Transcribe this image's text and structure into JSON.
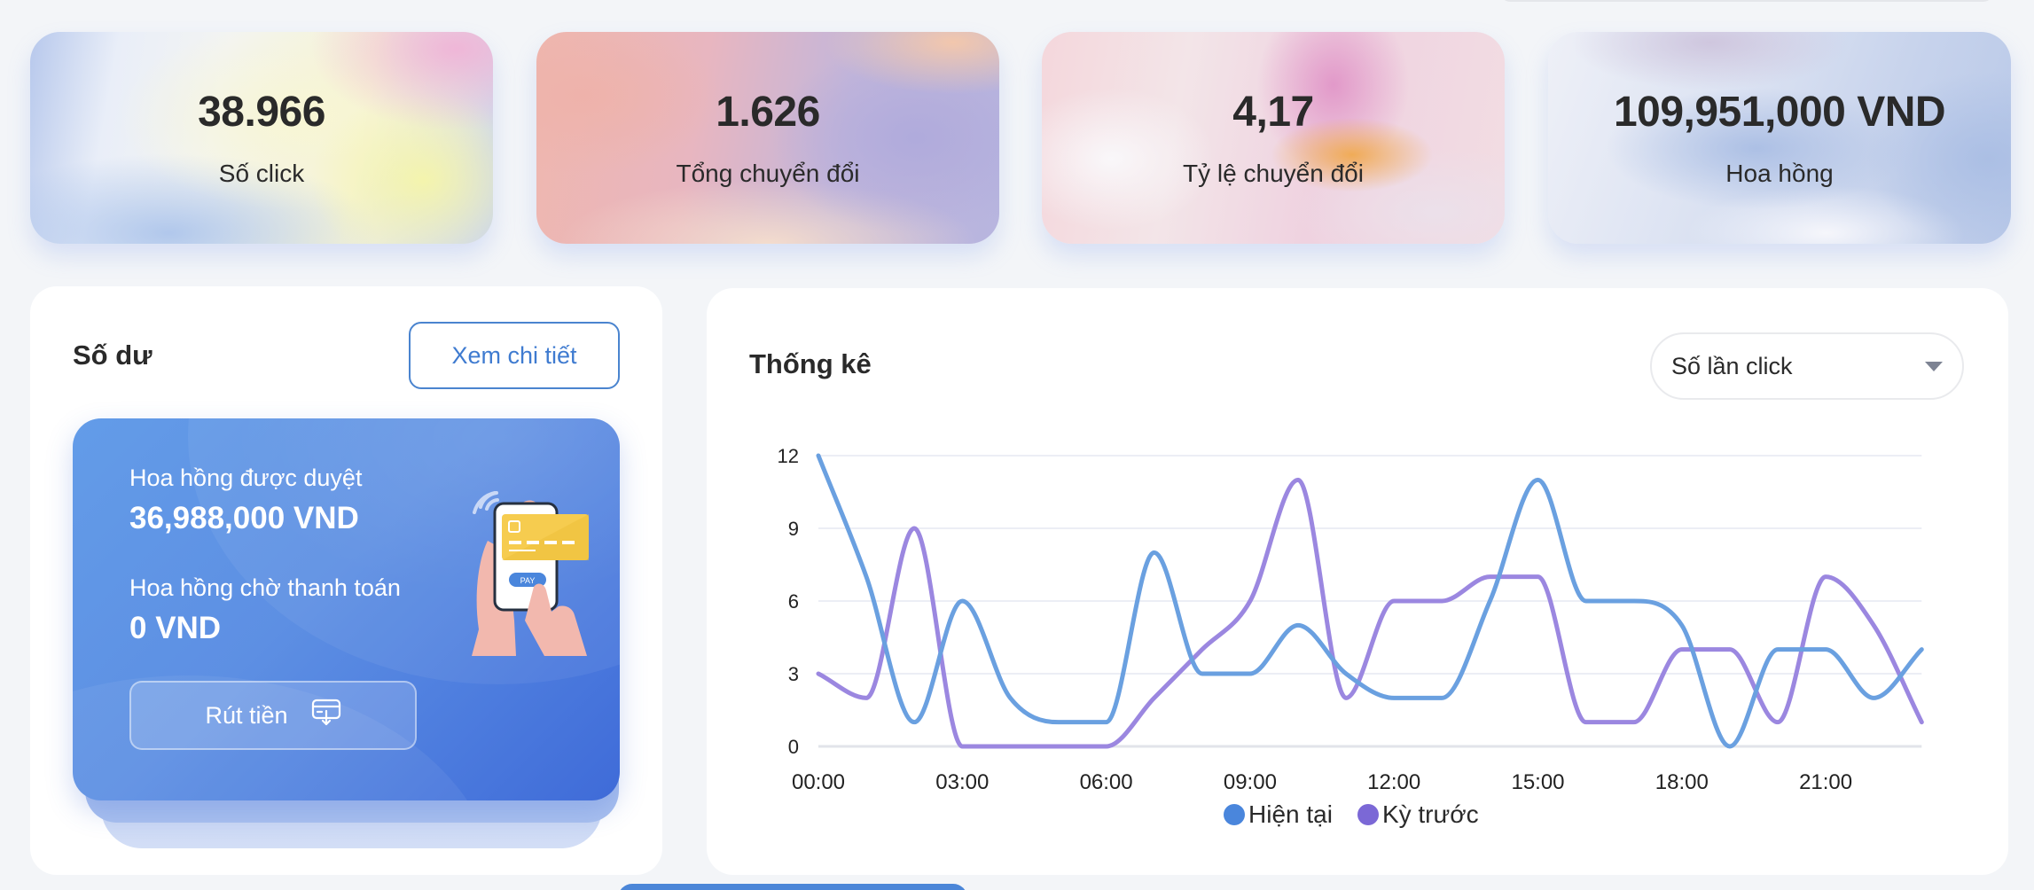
{
  "stats": [
    {
      "value": "38.966",
      "label": "Số click"
    },
    {
      "value": "1.626",
      "label": "Tổng chuyển đổi"
    },
    {
      "value": "4,17",
      "label": "Tỷ lệ chuyển đổi"
    },
    {
      "value": "109,951,000 VND",
      "label": "Hoa hồng"
    }
  ],
  "balance": {
    "title": "Số dư",
    "detail_button": "Xem chi tiết",
    "approved_label": "Hoa hồng được duyệt",
    "approved_value": "36,988,000 VND",
    "pending_label": "Hoa hồng chờ thanh toán",
    "pending_value": "0 VND",
    "withdraw_button": "Rút tiền",
    "withdraw_icon": "card-withdraw-icon",
    "illustration_pay_label": "PAY"
  },
  "statistics": {
    "title": "Thống kê",
    "metric_select": "Số lần click"
  },
  "colors": {
    "current": "#6aa0e0",
    "previous": "#9b87e0",
    "legend_current": "#4a86dc",
    "legend_previous": "#7b68d6",
    "accent": "#4a84cf"
  },
  "chart_data": {
    "type": "line",
    "title": "Thống kê",
    "xlabel": "",
    "ylabel": "",
    "x": [
      "00:00",
      "01:00",
      "02:00",
      "03:00",
      "04:00",
      "05:00",
      "06:00",
      "07:00",
      "08:00",
      "09:00",
      "10:00",
      "11:00",
      "12:00",
      "13:00",
      "14:00",
      "15:00",
      "16:00",
      "17:00",
      "18:00",
      "19:00",
      "20:00",
      "21:00",
      "22:00",
      "23:00"
    ],
    "x_tick_labels": [
      "00:00",
      "03:00",
      "06:00",
      "09:00",
      "12:00",
      "15:00",
      "18:00",
      "21:00"
    ],
    "y_ticks": [
      0,
      3,
      6,
      9,
      12
    ],
    "ylim": [
      0,
      12
    ],
    "grid": true,
    "legend_position": "bottom",
    "series": [
      {
        "name": "Hiện tại",
        "values": [
          12,
          7,
          1,
          6,
          2,
          1,
          1,
          8,
          3,
          3,
          5,
          3,
          2,
          2,
          6,
          11,
          6,
          6,
          5,
          0,
          4,
          4,
          2,
          4
        ]
      },
      {
        "name": "Kỳ trước",
        "values": [
          3,
          2,
          9,
          0,
          0,
          0,
          0,
          2,
          4,
          6,
          11,
          2,
          6,
          6,
          7,
          7,
          1,
          1,
          4,
          4,
          1,
          7,
          5,
          1
        ]
      }
    ]
  }
}
